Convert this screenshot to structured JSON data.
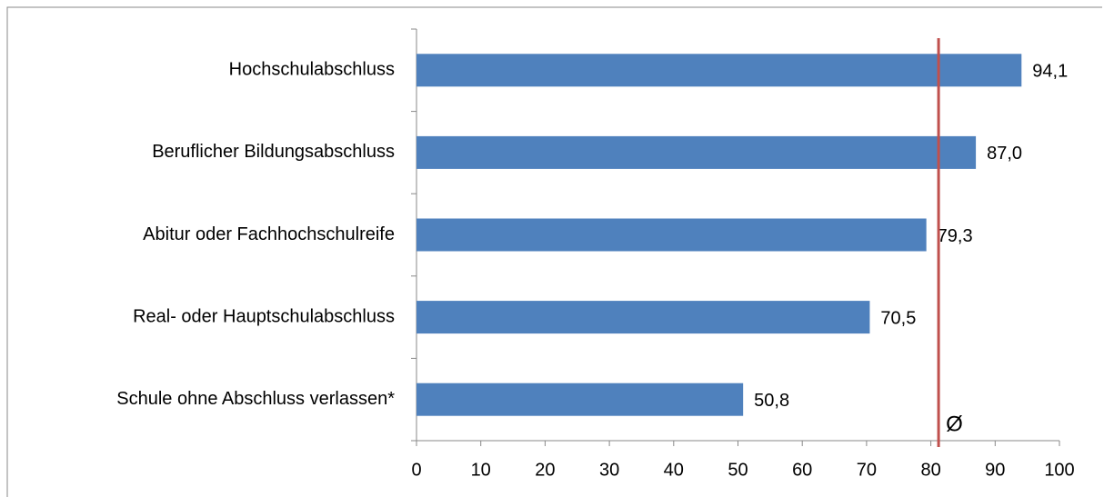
{
  "chart_data": {
    "type": "barh",
    "categories": [
      "Hochschulabschluss",
      "Beruflicher Bildungsabschluss",
      "Abitur oder Fachhochschulreife",
      "Real- oder Hauptschulabschluss",
      "Schule ohne Abschluss verlassen*"
    ],
    "values": [
      94.1,
      87.0,
      79.3,
      70.5,
      50.8
    ],
    "value_labels": [
      "94,1",
      "87,0",
      "79,3",
      "70,5",
      "50,8"
    ],
    "color": "#4f81bd",
    "xlim": [
      0,
      100
    ],
    "xticks": [
      0,
      10,
      20,
      30,
      40,
      50,
      60,
      70,
      80,
      90,
      100
    ],
    "average": {
      "value": 81.2,
      "label": "Ø",
      "color": "#c0504d"
    }
  }
}
